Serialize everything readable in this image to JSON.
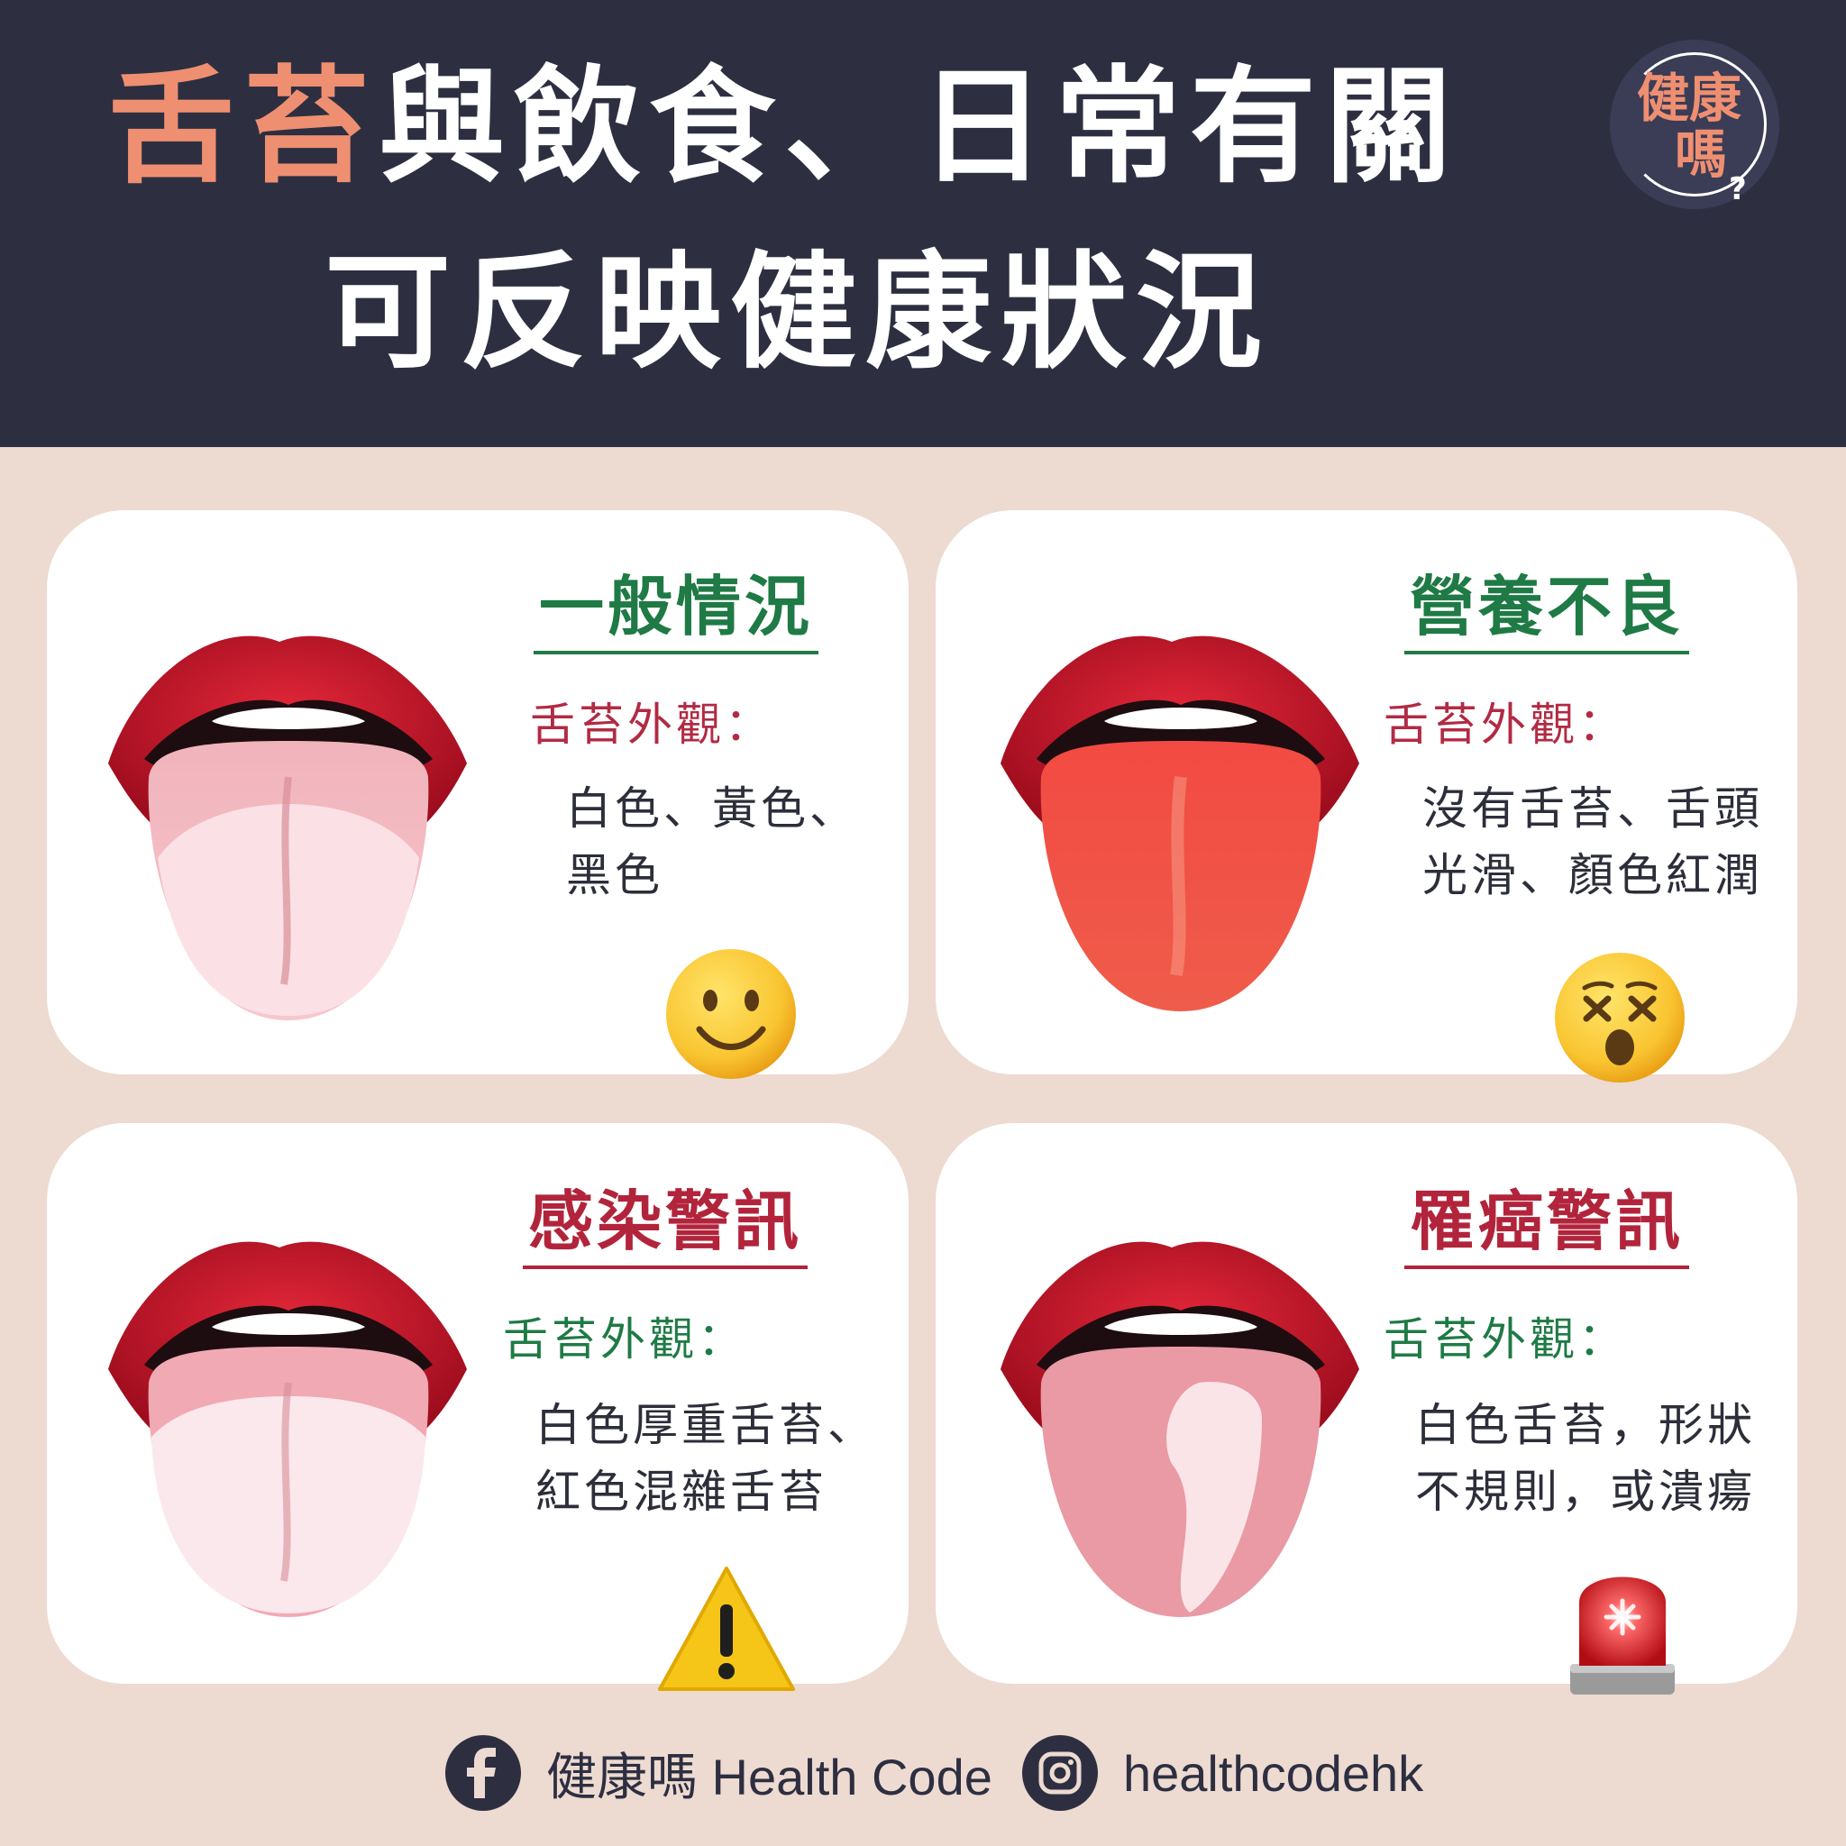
{
  "header": {
    "title_accent": "舌苔",
    "title_rest": "與飲食、日常有關",
    "title_line2": "可反映健康狀況",
    "logo_line1": "健康",
    "logo_line2": "嗎",
    "logo_mark": "?"
  },
  "cards": [
    {
      "title": "一般情況",
      "label": "舌苔外觀：",
      "desc": [
        "白色、黃色、",
        "黑色"
      ],
      "title_color": "#1f7a45",
      "label_color": "#b22a43",
      "icon": "slightly-smiling-face-icon",
      "tongue": "pink-tongue-white-coating"
    },
    {
      "title": "營養不良",
      "label": "舌苔外觀：",
      "desc": [
        "沒有舌苔、舌頭",
        "光滑、顏色紅潤"
      ],
      "title_color": "#1f7a45",
      "label_color": "#b22a43",
      "icon": "dizzy-face-icon",
      "tongue": "red-smooth-tongue"
    },
    {
      "title": "感染警訊",
      "label": "舌苔外觀：",
      "desc": [
        "白色厚重舌苔、",
        "紅色混雜舌苔"
      ],
      "title_color": "#b2243b",
      "label_color": "#1f7a45",
      "icon": "warning-icon",
      "tongue": "thick-white-coated-tongue"
    },
    {
      "title": "罹癌警訊",
      "label": "舌苔外觀：",
      "desc": [
        "白色舌苔，形狀",
        "不規則，或潰瘍"
      ],
      "title_color": "#b2243b",
      "label_color": "#1f7a45",
      "icon": "siren-icon",
      "tongue": "irregular-white-patch-tongue"
    }
  ],
  "footer": {
    "facebook_label": "健康嗎 Health Code",
    "instagram_label": "healthcodehk",
    "facebook_icon": "facebook-icon",
    "instagram_icon": "instagram-icon"
  },
  "colors": {
    "header_bg": "#2d2f41",
    "page_bg": "#eddad1",
    "accent": "#ef8f71",
    "card_bg": "#ffffff"
  }
}
